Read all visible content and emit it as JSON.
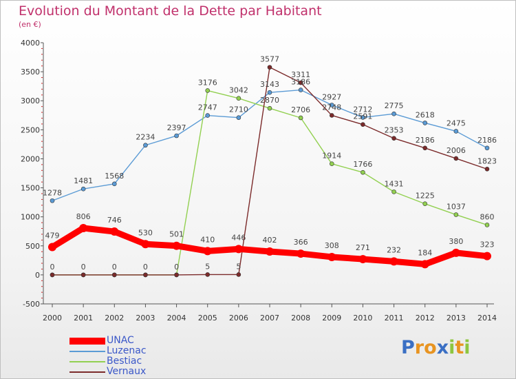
{
  "title": "Evolution du Montant de la Dette par Habitant",
  "subtitle": "(en €)",
  "logo": {
    "letters": [
      {
        "ch": "P",
        "color": "#3a6fc4"
      },
      {
        "ch": "r",
        "color": "#e89421"
      },
      {
        "ch": "o",
        "color": "#e89421"
      },
      {
        "ch": "x",
        "color": "#3a6fc4"
      },
      {
        "ch": "i",
        "color": "#8dc63f"
      },
      {
        "ch": "t",
        "color": "#e89421"
      },
      {
        "ch": "i",
        "color": "#8dc63f"
      }
    ]
  },
  "chart_data": {
    "type": "line",
    "title": "Evolution du Montant de la Dette par Habitant",
    "subtitle": "(en €)",
    "x": [
      "2000",
      "2001",
      "2002",
      "2003",
      "2004",
      "2005",
      "2006",
      "2007",
      "2008",
      "2009",
      "2010",
      "2011",
      "2012",
      "2013",
      "2014"
    ],
    "ylim": [
      -500,
      4000
    ],
    "yticks": [
      -500,
      0,
      500,
      1000,
      1500,
      2000,
      2500,
      3000,
      3500,
      4000
    ],
    "grid": false,
    "legend_position": "bottom-left",
    "series": [
      {
        "name": "UNAC",
        "color": "#ff0000",
        "values": [
          479,
          806,
          746,
          530,
          501,
          410,
          446,
          402,
          366,
          308,
          271,
          232,
          184,
          380,
          323
        ]
      },
      {
        "name": "Luzenac",
        "color": "#5b9bd5",
        "values": [
          1278,
          1481,
          1568,
          2234,
          2397,
          2747,
          2710,
          3143,
          3186,
          2927,
          2712,
          2775,
          2618,
          2475,
          2186
        ]
      },
      {
        "name": "Bestiac",
        "color": "#92d050",
        "values": [
          0,
          0,
          0,
          0,
          0,
          3176,
          3042,
          2870,
          2706,
          1914,
          1766,
          1431,
          1225,
          1037,
          860
        ]
      },
      {
        "name": "Vernaux",
        "color": "#7b2a2a",
        "values": [
          0,
          0,
          0,
          0,
          0,
          5,
          5,
          3577,
          3311,
          2748,
          2591,
          2353,
          2186,
          2006,
          1823
        ]
      }
    ],
    "point_labels": {
      "UNAC": [
        "479",
        "806",
        "746",
        "530",
        "501",
        "410",
        "446",
        "402",
        "366",
        "308",
        "271",
        "232",
        "184",
        "380",
        "323"
      ],
      "Luzenac": [
        "1278",
        "1481",
        "1568",
        "2234",
        "2397",
        "2747",
        "2710",
        "3143",
        "3186",
        "2927",
        "2712",
        "2775",
        "2618",
        "2475",
        "2186"
      ],
      "Bestiac": [
        "",
        "",
        "",
        "",
        "",
        "3176",
        "3042",
        "2870",
        "2706",
        "1914",
        "1766",
        "1431",
        "1225",
        "1037",
        "860"
      ],
      "Vernaux": [
        "0",
        "0",
        "0",
        "0",
        "0",
        "5",
        "5",
        "3577",
        "3311",
        "2748",
        "2591",
        "2353",
        "2186",
        "2006",
        "1823"
      ]
    }
  }
}
